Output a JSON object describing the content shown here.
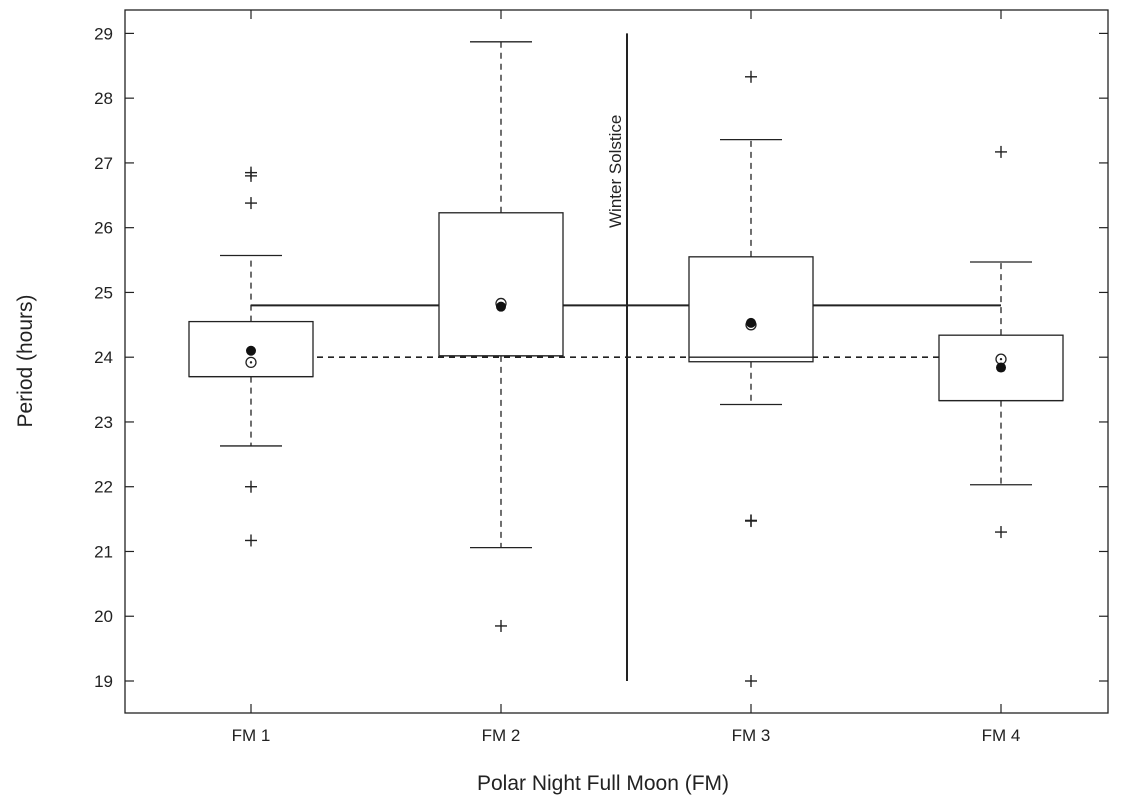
{
  "chart_data": {
    "type": "boxplot",
    "xlabel": "Polar Night Full Moon (FM)",
    "ylabel": "Period (hours)",
    "categories": [
      "FM 1",
      "FM 2",
      "FM 3",
      "FM 4"
    ],
    "ylim": [
      18.5,
      29.3
    ],
    "yticks": [
      19,
      20,
      21,
      22,
      23,
      24,
      25,
      26,
      27,
      28,
      29
    ],
    "grid": false,
    "boxes": [
      {
        "category": "FM 1",
        "whisker_low": 22.63,
        "q1": 23.7,
        "median": 23.7,
        "q3": 24.55,
        "whisker_high": 25.57,
        "mean": 24.1,
        "mean_open": 23.92,
        "outliers": [
          26.8,
          26.85,
          26.38,
          22.0,
          21.17
        ]
      },
      {
        "category": "FM 2",
        "whisker_low": 21.06,
        "q1": 24.02,
        "median": 24.02,
        "q3": 26.23,
        "whisker_high": 28.87,
        "mean": 24.78,
        "mean_open": 24.83,
        "outliers": [
          19.85
        ]
      },
      {
        "category": "FM 3",
        "whisker_low": 23.27,
        "q1": 23.93,
        "median": 24.0,
        "q3": 25.55,
        "whisker_high": 27.36,
        "mean": 24.53,
        "mean_open": 24.5,
        "outliers": [
          28.33,
          21.47,
          21.48,
          19.0
        ]
      },
      {
        "category": "FM 4",
        "whisker_low": 22.03,
        "q1": 23.33,
        "median": 23.33,
        "q3": 24.34,
        "whisker_high": 25.47,
        "mean": 23.84,
        "mean_open": 23.97,
        "outliers": [
          27.17,
          21.3
        ]
      }
    ],
    "reference_lines": [
      {
        "style": "solid",
        "value": 24.8,
        "from": "FM 1",
        "to": "FM 4"
      },
      {
        "style": "dashed",
        "value": 24.0,
        "from": "FM 1",
        "to": "FM 4"
      }
    ],
    "annotations": [
      {
        "text": "Winter Solstice",
        "position": "between FM 2 and FM 3",
        "y_from": 19.0,
        "y_to": 29.0
      }
    ]
  }
}
